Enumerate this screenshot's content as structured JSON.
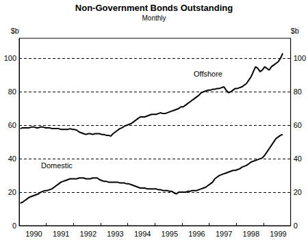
{
  "chart_data": {
    "type": "line",
    "title": "Non-Government Bonds Outstanding",
    "subtitle": "Monthly",
    "ylabel": "$b",
    "y2label": "$b",
    "categories": [
      null,
      null,
      null,
      null,
      null,
      null,
      "1990",
      null,
      null,
      null,
      null,
      null,
      null,
      null,
      null,
      null,
      null,
      null,
      "1991",
      null,
      null,
      null,
      null,
      null,
      null,
      null,
      null,
      null,
      null,
      null,
      "1992",
      null,
      null,
      null,
      null,
      null,
      null,
      null,
      null,
      null,
      null,
      null,
      "1993",
      null,
      null,
      null,
      null,
      null,
      null,
      null,
      null,
      null,
      null,
      null,
      "1994",
      null,
      null,
      null,
      null,
      null,
      null,
      null,
      null,
      null,
      null,
      null,
      "1995",
      null,
      null,
      null,
      null,
      null,
      null,
      null,
      null,
      null,
      null,
      null,
      "1996",
      null,
      null,
      null,
      null,
      null,
      null,
      null,
      null,
      null,
      null,
      null,
      "1997",
      null,
      null,
      null,
      null,
      null,
      null,
      null,
      null,
      null,
      null,
      null,
      "1998",
      null,
      null,
      null,
      null,
      null,
      null,
      null,
      null,
      null,
      null,
      null,
      "1999",
      null,
      null,
      null,
      null,
      null
    ],
    "series": [
      {
        "name": "Offshore",
        "color": "#000000",
        "values": [
          58,
          58.5,
          58.5,
          58.5,
          58.5,
          59,
          59,
          58.5,
          58.5,
          59,
          59,
          58.5,
          58.5,
          58.5,
          58,
          58,
          58,
          58,
          57.5,
          57.5,
          57.5,
          57.5,
          58,
          57.5,
          57.5,
          57,
          56,
          55.5,
          55,
          54.5,
          55,
          55,
          54.5,
          55,
          55,
          55,
          54.5,
          54.5,
          54,
          54,
          53.5,
          55,
          56,
          57,
          58,
          58.5,
          59.5,
          60,
          60.5,
          61,
          62,
          63,
          64,
          65,
          65,
          65,
          65.5,
          66,
          66.5,
          66.5,
          66.5,
          67,
          67.5,
          67,
          67,
          67.5,
          68,
          68.5,
          69,
          69.5,
          70,
          71,
          71,
          72,
          73,
          74,
          75,
          76,
          77,
          78,
          79.5,
          80,
          80.5,
          81,
          81,
          81.5,
          81.5,
          82,
          82,
          82.5,
          83,
          81,
          79.5,
          80,
          81,
          82,
          82,
          82.5,
          83,
          84,
          85,
          87,
          89,
          92,
          95,
          94,
          92,
          93,
          95,
          94,
          93,
          95,
          96,
          97,
          98,
          100,
          103,
          null,
          null,
          null
        ]
      },
      {
        "name": "Domestic",
        "color": "#000000",
        "values": [
          13.5,
          14,
          15,
          16,
          17,
          17.5,
          18,
          18.5,
          19,
          20,
          20.5,
          21,
          21,
          21.5,
          22,
          23,
          24,
          25,
          26,
          26.5,
          27,
          27.5,
          28,
          28,
          28,
          28,
          28.5,
          28.5,
          28.5,
          28,
          28,
          28,
          28.5,
          28.5,
          28.5,
          27.5,
          27,
          26.5,
          26.5,
          26,
          26,
          26,
          26,
          26,
          25.5,
          25.5,
          25.5,
          25,
          25,
          24.5,
          24,
          23.5,
          23,
          22.5,
          22.5,
          22.5,
          22,
          22,
          22,
          22,
          22,
          21.5,
          21.5,
          21,
          21,
          21,
          20.5,
          20.5,
          19.5,
          19,
          20,
          20,
          20,
          20,
          20.5,
          20.5,
          21,
          21,
          21,
          21.5,
          22,
          22.5,
          23,
          24,
          25,
          26,
          28,
          29,
          30,
          30.5,
          31,
          31.5,
          32,
          32.5,
          33,
          33,
          33.5,
          34,
          35,
          35.5,
          36,
          37,
          38,
          38.5,
          39,
          39.5,
          40,
          40.5,
          42,
          44,
          46,
          48,
          50,
          52,
          53,
          54,
          54.5,
          null,
          null,
          null
        ]
      }
    ],
    "ylim": [
      0,
      112
    ],
    "yticks": [
      0,
      20,
      40,
      60,
      80,
      100
    ],
    "y2lim": [
      0,
      112
    ],
    "y2ticks": [
      0,
      20,
      40,
      60,
      80,
      100
    ],
    "grid": true
  }
}
